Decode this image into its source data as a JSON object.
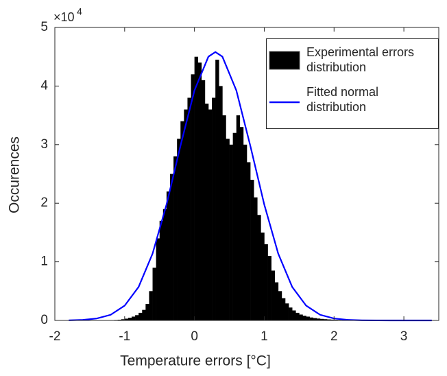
{
  "chart_data": {
    "type": "histogram",
    "xlabel": "Temperature errors [°C]",
    "ylabel": "Occurences",
    "y_exponent_base": "×10",
    "y_exponent": "4",
    "xlim": [
      -2,
      3.5
    ],
    "ylim": [
      0,
      50000
    ],
    "xticks": [
      -2,
      -1,
      0,
      1,
      2,
      3
    ],
    "yticks": [
      {
        "value": 0,
        "label": "0"
      },
      {
        "value": 10000,
        "label": "1"
      },
      {
        "value": 20000,
        "label": "2"
      },
      {
        "value": 30000,
        "label": "3"
      },
      {
        "value": 40000,
        "label": "4"
      },
      {
        "value": 50000,
        "label": "5"
      }
    ],
    "legend": "upper right",
    "histogram": {
      "name": "Experimental errors distribution",
      "color": "#000000",
      "bins": [
        -1.2,
        -1.15,
        -1.1,
        -1.05,
        -1.0,
        -0.95,
        -0.9,
        -0.85,
        -0.8,
        -0.75,
        -0.7,
        -0.65,
        -0.6,
        -0.55,
        -0.5,
        -0.45,
        -0.4,
        -0.35,
        -0.3,
        -0.25,
        -0.2,
        -0.15,
        -0.1,
        -0.05,
        0,
        0.05,
        0.1,
        0.15,
        0.2,
        0.25,
        0.3,
        0.35,
        0.4,
        0.45,
        0.5,
        0.55,
        0.6,
        0.65,
        0.7,
        0.75,
        0.8,
        0.85,
        0.9,
        0.95,
        1.0,
        1.05,
        1.1,
        1.15,
        1.2,
        1.25,
        1.3,
        1.35,
        1.4,
        1.45,
        1.5,
        1.55,
        1.6,
        1.65,
        1.7,
        1.75,
        1.8,
        1.85,
        1.9,
        1.95,
        2.0,
        2.05,
        2.1,
        2.15,
        2.2,
        2.25,
        2.3,
        2.35,
        2.4,
        2.45,
        2.5,
        2.55,
        2.6
      ],
      "counts": [
        50,
        80,
        120,
        200,
        300,
        450,
        650,
        900,
        1300,
        1800,
        2800,
        5000,
        9000,
        14000,
        17000,
        19000,
        22000,
        25000,
        28000,
        31000,
        34000,
        36000,
        38000,
        42000,
        45000,
        44000,
        41000,
        37000,
        36000,
        38000,
        44500,
        40000,
        35000,
        31000,
        30000,
        32000,
        35000,
        33000,
        30000,
        27000,
        24000,
        21000,
        18000,
        15000,
        13000,
        11000,
        8500,
        6500,
        5000,
        3800,
        2900,
        2200,
        1700,
        1300,
        1000,
        800,
        650,
        500,
        400,
        320,
        260,
        210,
        170,
        140,
        110,
        90,
        70,
        55,
        45,
        35,
        28,
        22,
        17,
        13,
        10,
        8
      ]
    },
    "fit": {
      "name": "Fitted normal distribution",
      "color": "#0000ff",
      "x": [
        -1.8,
        -1.6,
        -1.4,
        -1.2,
        -1.0,
        -0.8,
        -0.6,
        -0.4,
        -0.2,
        0,
        0.2,
        0.3,
        0.4,
        0.6,
        0.8,
        1.0,
        1.2,
        1.4,
        1.6,
        1.8,
        2.0,
        2.2,
        2.4,
        2.6,
        2.8,
        3.0,
        3.2,
        3.4
      ],
      "values": [
        24,
        94,
        325,
        966,
        2520,
        5720,
        11400,
        19780,
        29820,
        39250,
        45020,
        45800,
        45020,
        39250,
        29820,
        19780,
        11400,
        5720,
        2520,
        966,
        325,
        94,
        24,
        6,
        1,
        0,
        0,
        0
      ]
    }
  }
}
